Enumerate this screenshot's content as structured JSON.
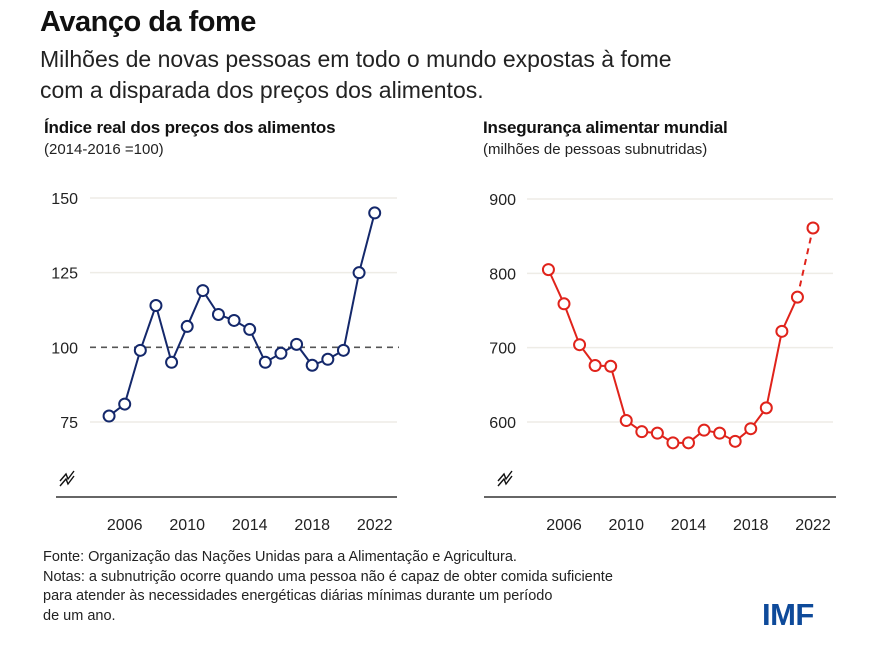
{
  "title": "Avanço da fome",
  "subtitle_lines": [
    "Milhões de novas pessoas em todo o mundo expostas à fome",
    "com a disparada dos preços dos alimentos."
  ],
  "footer": {
    "source": "Fonte: Organização das Nações Unidas para a Alimentação e Agricultura.",
    "notes_lines": [
      "Notas: a subnutrição ocorre quando uma pessoa não é capaz de obter comida suficiente",
      "para atender às necessidades energéticas diárias mínimas durante um período",
      "de um ano."
    ]
  },
  "logo": "IMF",
  "colors": {
    "left_series": "#14286b",
    "right_series": "#e0231b",
    "reference_line": "#555555",
    "grid": "#eeece6",
    "logo": "#0e4a9a"
  },
  "chart_data": [
    {
      "type": "line",
      "title": "Índice real dos preços dos alimentos",
      "subtitle": "(2014-2016 =100)",
      "xlabel": "",
      "ylabel": "",
      "x": [
        2005,
        2006,
        2007,
        2008,
        2009,
        2010,
        2011,
        2012,
        2013,
        2014,
        2015,
        2016,
        2017,
        2018,
        2019,
        2020,
        2021,
        2022
      ],
      "series": [
        {
          "name": "Índice real dos preços dos alimentos",
          "values": [
            77,
            81,
            99,
            114,
            95,
            107,
            119,
            111,
            109,
            106,
            95,
            98,
            101,
            94,
            96,
            99,
            125,
            145
          ]
        }
      ],
      "reference_line": 100,
      "y_ticks": [
        75,
        100,
        125,
        150
      ],
      "y_tick_labels": [
        "75",
        "100",
        "125",
        "150"
      ],
      "x_ticks": [
        2006,
        2010,
        2014,
        2018,
        2022
      ],
      "x_tick_labels": [
        "2006",
        "2010",
        "2014",
        "2018",
        "2022"
      ],
      "ylim": [
        57,
        150
      ],
      "xlim": [
        2004,
        2023
      ],
      "axis_break": true,
      "grid": true
    },
    {
      "type": "line",
      "title": "Insegurança alimentar mundial",
      "subtitle": "(milhões de pessoas subnutridas)",
      "xlabel": "",
      "ylabel": "",
      "x": [
        2005,
        2006,
        2007,
        2008,
        2009,
        2010,
        2011,
        2012,
        2013,
        2014,
        2015,
        2016,
        2017,
        2018,
        2019,
        2020,
        2021,
        2022
      ],
      "series": [
        {
          "name": "Pessoas subnutridas (milhões)",
          "values": [
            805,
            759,
            704,
            676,
            675,
            602,
            587,
            585,
            572,
            572,
            589,
            585,
            574,
            591,
            619,
            722,
            768,
            861
          ],
          "projected_from_index": 16
        }
      ],
      "y_ticks": [
        600,
        700,
        800,
        900
      ],
      "y_tick_labels": [
        "600",
        "700",
        "800",
        "900"
      ],
      "x_ticks": [
        2006,
        2010,
        2014,
        2018,
        2022
      ],
      "x_tick_labels": [
        "2006",
        "2010",
        "2014",
        "2018",
        "2022"
      ],
      "ylim": [
        520,
        900
      ],
      "xlim": [
        2004,
        2023
      ],
      "axis_break": true,
      "grid": true
    }
  ]
}
